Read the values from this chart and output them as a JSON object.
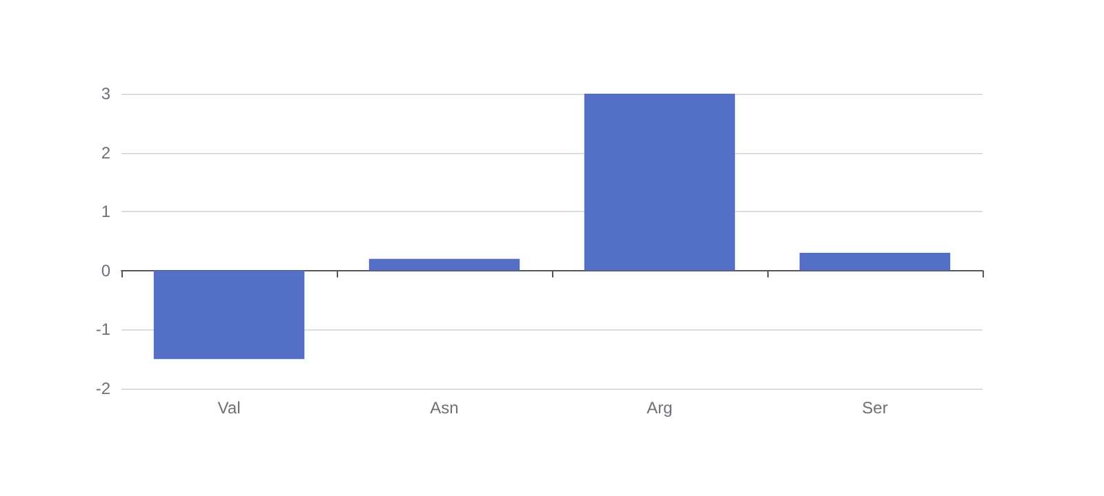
{
  "chart_data": {
    "type": "bar",
    "categories": [
      "Val",
      "Asn",
      "Arg",
      "Ser"
    ],
    "values": [
      -1.5,
      0.2,
      3,
      0.3
    ],
    "color": "#5470c6",
    "ylim": [
      -2,
      3
    ],
    "yticks": [
      -2,
      -1,
      0,
      1,
      2,
      3
    ],
    "grid": "y"
  }
}
